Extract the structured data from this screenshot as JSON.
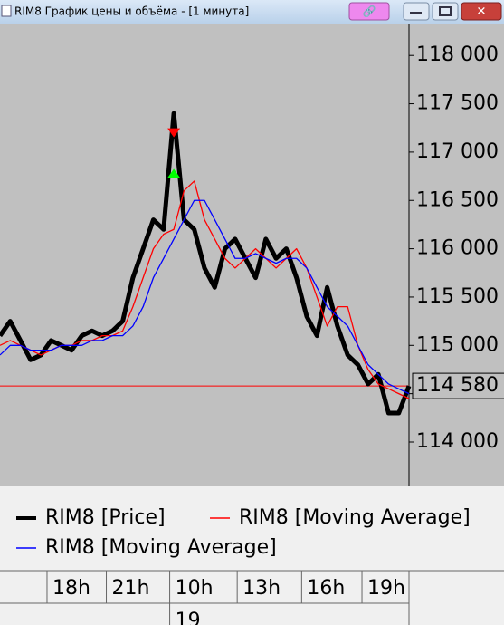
{
  "window": {
    "title": "RIM8 График цены и объёма - [1 минута]"
  },
  "chart_data": {
    "type": "line",
    "x": [
      0,
      1,
      2,
      3,
      4,
      5,
      6,
      7,
      8,
      9,
      10,
      11,
      12,
      13,
      14,
      15,
      16,
      17,
      18,
      19,
      20,
      21,
      22,
      23,
      24,
      25,
      26,
      27,
      28,
      29,
      30,
      31,
      32,
      33,
      34,
      35,
      36,
      37,
      38,
      39,
      40
    ],
    "series": [
      {
        "name": "RIM8 [Price]",
        "color": "#000000",
        "values": [
          115100,
          115250,
          115050,
          114850,
          114900,
          115050,
          115000,
          114950,
          115100,
          115150,
          115100,
          115150,
          115250,
          115700,
          116000,
          116300,
          116200,
          117400,
          116300,
          116200,
          115800,
          115600,
          116000,
          116100,
          115900,
          115700,
          116100,
          115900,
          116000,
          115700,
          115300,
          115100,
          115600,
          115200,
          114900,
          114800,
          114600,
          114700,
          114300,
          114300,
          114580
        ]
      },
      {
        "name": "RIM8 [Moving Average]",
        "color": "#ff0000",
        "values": [
          115000,
          115050,
          115000,
          114950,
          114900,
          114950,
          115000,
          115000,
          115050,
          115050,
          115100,
          115100,
          115150,
          115400,
          115700,
          116000,
          116150,
          116200,
          116600,
          116700,
          116300,
          116100,
          115900,
          115800,
          115900,
          116000,
          115900,
          115800,
          115900,
          116000,
          115800,
          115500,
          115200,
          115400,
          115400,
          115000,
          114750,
          114600,
          114550,
          114500,
          114450
        ]
      },
      {
        "name": "RIM8 [Moving Average]",
        "color": "#0000ff",
        "values": [
          114900,
          115000,
          115000,
          114950,
          114950,
          114950,
          115000,
          115000,
          115000,
          115050,
          115050,
          115100,
          115100,
          115200,
          115400,
          115700,
          115900,
          116100,
          116300,
          116500,
          116500,
          116300,
          116100,
          115900,
          115900,
          115950,
          115900,
          115850,
          115900,
          115900,
          115800,
          115600,
          115400,
          115300,
          115200,
          115000,
          114800,
          114700,
          114600,
          114550,
          114500
        ]
      }
    ],
    "markers": [
      {
        "x": 17,
        "value": 117200,
        "color": "#ff0000",
        "dir": "down"
      },
      {
        "x": 17,
        "value": 116780,
        "color": "#00ff00",
        "dir": "up"
      }
    ],
    "last_price": {
      "value": 114580,
      "label": "114 580",
      "color": "#ff0000"
    },
    "xlim": [
      0,
      40
    ],
    "xticks": [
      {
        "value": 4.6,
        "label": "18h"
      },
      {
        "value": 10.4,
        "label": "21h"
      },
      {
        "value": 16.6,
        "label": "10h"
      },
      {
        "value": 23.2,
        "label": "13h"
      },
      {
        "value": 29.5,
        "label": "16h"
      },
      {
        "value": 35.4,
        "label": "19h"
      }
    ],
    "date_ticks": [
      {
        "value": 16.6,
        "label": "19"
      }
    ],
    "ylim": [
      113550,
      118330
    ],
    "yticks": [
      {
        "value": 114000,
        "label": "114 000"
      },
      {
        "value": 114500,
        "label": "114 500"
      },
      {
        "value": 115000,
        "label": "115 000"
      },
      {
        "value": 115500,
        "label": "115 500"
      },
      {
        "value": 116000,
        "label": "116 000"
      },
      {
        "value": 116500,
        "label": "116 500"
      },
      {
        "value": 117000,
        "label": "117 000"
      },
      {
        "value": 117500,
        "label": "117 500"
      },
      {
        "value": 118000,
        "label": "118 000"
      }
    ]
  }
}
